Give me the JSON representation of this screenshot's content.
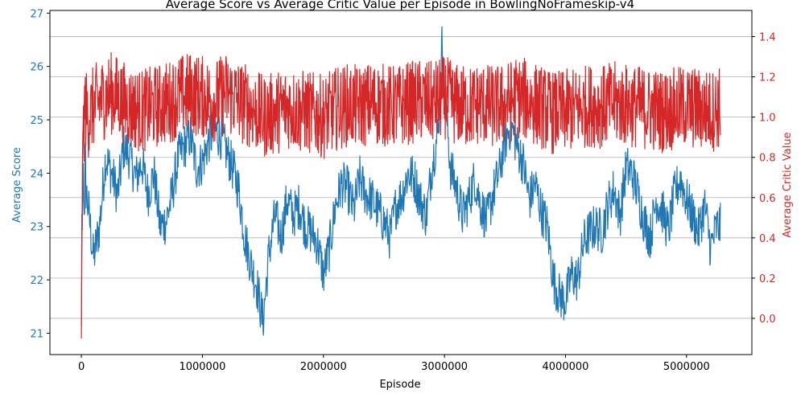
{
  "chart_data": {
    "type": "line",
    "title": "Average Score vs Average Critic Value per Episode in BowlingNoFrameskip-v4",
    "xlabel": "Episode",
    "ylabel_left": "Average Score",
    "ylabel_right": "Average Critic Value",
    "xlim": [
      -260000,
      5540000
    ],
    "ylim_left": [
      20.6,
      27.05
    ],
    "ylim_right": [
      -0.18,
      1.53
    ],
    "x_ticks": [
      0,
      1000000,
      2000000,
      3000000,
      4000000,
      5000000
    ],
    "x_tick_labels": [
      "0",
      "1000000",
      "2000000",
      "3000000",
      "4000000",
      "5000000"
    ],
    "y_left_ticks": [
      21,
      22,
      23,
      24,
      25,
      26,
      27
    ],
    "y_left_tick_labels": [
      "21",
      "22",
      "23",
      "24",
      "25",
      "26",
      "27"
    ],
    "y_right_ticks": [
      0.0,
      0.2,
      0.4,
      0.6,
      0.8,
      1.0,
      1.2,
      1.4
    ],
    "y_right_tick_labels": [
      "0.0",
      "0.2",
      "0.4",
      "0.6",
      "0.8",
      "1.0",
      "1.2",
      "1.4"
    ],
    "grid": "horizontal, right axis",
    "colors": {
      "score": "#1f77b4",
      "critic": "#d62728",
      "grid": "#b0b0b0"
    },
    "series": [
      {
        "axis": "left",
        "values_x": [
          0,
          20000,
          60000,
          100000,
          150000,
          200000,
          250000,
          300000,
          350000,
          400000,
          450000,
          500000,
          550000,
          600000,
          650000,
          700000,
          750000,
          800000,
          850000,
          900000,
          950000,
          1000000,
          1050000,
          1100000,
          1150000,
          1200000,
          1250000,
          1300000,
          1350000,
          1400000,
          1450000,
          1500000,
          1550000,
          1600000,
          1650000,
          1700000,
          1750000,
          1800000,
          1850000,
          1900000,
          1950000,
          2000000,
          2050000,
          2100000,
          2150000,
          2200000,
          2250000,
          2300000,
          2350000,
          2400000,
          2450000,
          2500000,
          2550000,
          2600000,
          2650000,
          2700000,
          2750000,
          2800000,
          2850000,
          2900000,
          2950000,
          2980000,
          3000000,
          3050000,
          3100000,
          3150000,
          3200000,
          3250000,
          3300000,
          3350000,
          3400000,
          3450000,
          3500000,
          3550000,
          3600000,
          3650000,
          3700000,
          3750000,
          3800000,
          3850000,
          3900000,
          3950000,
          4000000,
          4050000,
          4100000,
          4150000,
          4200000,
          4250000,
          4300000,
          4350000,
          4400000,
          4450000,
          4500000,
          4550000,
          4600000,
          4650000,
          4700000,
          4750000,
          4800000,
          4850000,
          4900000,
          4950000,
          5000000,
          5050000,
          5100000,
          5150000,
          5200000,
          5250000,
          5280000
        ],
        "values_y": [
          21.6,
          24.0,
          23.3,
          22.4,
          23.0,
          24.3,
          24.0,
          23.6,
          24.5,
          24.3,
          23.9,
          24.2,
          23.6,
          24.0,
          23.0,
          23.1,
          23.6,
          24.3,
          24.5,
          24.7,
          24.1,
          24.2,
          24.6,
          24.8,
          24.7,
          24.4,
          24.1,
          23.7,
          22.8,
          22.3,
          21.9,
          21.2,
          22.5,
          23.2,
          22.8,
          23.5,
          23.2,
          23.4,
          23.0,
          22.9,
          22.7,
          22.1,
          22.6,
          23.4,
          23.8,
          23.7,
          23.3,
          23.9,
          23.6,
          23.5,
          23.3,
          23.1,
          22.8,
          23.4,
          23.6,
          24.0,
          23.9,
          23.5,
          23.2,
          24.2,
          24.8,
          26.5,
          25.6,
          24.1,
          23.7,
          23.2,
          23.5,
          23.9,
          23.4,
          23.1,
          23.6,
          24.0,
          24.6,
          24.9,
          24.5,
          24.2,
          23.5,
          23.8,
          23.3,
          23.0,
          22.0,
          21.7,
          21.6,
          22.1,
          22.0,
          22.7,
          22.9,
          23.0,
          22.9,
          23.4,
          23.7,
          23.2,
          24.1,
          24.0,
          23.6,
          23.1,
          22.8,
          23.5,
          23.3,
          22.9,
          23.6,
          23.9,
          23.5,
          23.2,
          22.9,
          23.4,
          22.6,
          23.0,
          23.0
        ]
      },
      {
        "axis": "right",
        "values_x": [
          0,
          10000,
          30000,
          60000,
          100000,
          150000,
          200000,
          250000,
          300000,
          350000,
          400000,
          500000,
          600000,
          700000,
          800000,
          900000,
          1000000,
          1100000,
          1200000,
          1300000,
          1400000,
          1500000,
          1600000,
          1700000,
          1800000,
          1900000,
          2000000,
          2100000,
          2200000,
          2300000,
          2400000,
          2500000,
          2600000,
          2700000,
          2800000,
          2900000,
          3000000,
          3100000,
          3200000,
          3300000,
          3400000,
          3500000,
          3600000,
          3700000,
          3800000,
          3900000,
          4000000,
          4100000,
          4200000,
          4300000,
          4400000,
          4500000,
          4600000,
          4700000,
          4800000,
          4900000,
          5000000,
          5100000,
          5200000,
          5280000
        ],
        "values_y": [
          -0.1,
          0.9,
          1.05,
          1.0,
          1.05,
          1.08,
          1.1,
          1.12,
          1.1,
          1.07,
          1.05,
          1.03,
          1.05,
          1.07,
          1.1,
          1.12,
          1.1,
          1.08,
          1.12,
          1.08,
          1.05,
          1.0,
          1.02,
          1.05,
          1.03,
          1.02,
          1.0,
          1.04,
          1.06,
          1.05,
          1.07,
          1.06,
          1.05,
          1.07,
          1.08,
          1.07,
          1.1,
          1.06,
          1.05,
          1.07,
          1.05,
          1.06,
          1.1,
          1.08,
          1.05,
          1.02,
          1.03,
          1.04,
          1.06,
          1.05,
          1.07,
          1.06,
          1.05,
          1.04,
          1.03,
          1.04,
          1.05,
          1.04,
          1.03,
          1.05
        ]
      }
    ]
  }
}
